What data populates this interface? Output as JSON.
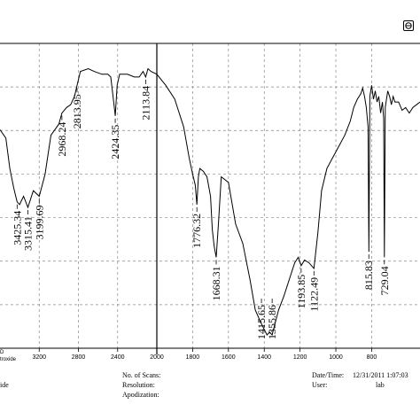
{
  "chart_data": {
    "type": "line",
    "title": "",
    "xlabel": "",
    "ylabel": "",
    "x_reversed": true,
    "xlim": [
      3600,
      530
    ],
    "ylim": [
      0,
      100
    ],
    "x_ticks": [
      3200,
      2800,
      2400,
      2000,
      1800,
      1600,
      1400,
      1200,
      1000,
      800
    ],
    "x_tick_labels": [
      "3200",
      "2800",
      "2400",
      "2000",
      "1800",
      "1600",
      "1400",
      "1200",
      "1000",
      "800"
    ],
    "grid": true,
    "series": [
      {
        "x": [
          3600,
          3540,
          3500,
          3460,
          3425.34,
          3400,
          3360,
          3315.41,
          3260,
          3199.69,
          3140,
          3080,
          3000,
          2968.24,
          2920,
          2880,
          2840,
          2813.95,
          2780,
          2700,
          2640,
          2560,
          2500,
          2470,
          2440,
          2424.35,
          2405,
          2380,
          2300,
          2230,
          2180,
          2140,
          2113.84,
          2090,
          2060,
          2000,
          1950,
          1900,
          1850,
          1820,
          1800,
          1785,
          1776.32,
          1768,
          1760,
          1740,
          1720,
          1700,
          1690,
          1680,
          1668.31,
          1655,
          1640,
          1600,
          1560,
          1520,
          1480,
          1450,
          1430,
          1415.65,
          1400,
          1385,
          1370,
          1355.86,
          1340,
          1320,
          1290,
          1250,
          1230,
          1210,
          1193.85,
          1175,
          1150,
          1122.49,
          1100,
          1080,
          1050,
          1000,
          950,
          920,
          900,
          880,
          860,
          850,
          840,
          830,
          820,
          815.83,
          810,
          800,
          790,
          780,
          770,
          760,
          750,
          740,
          733,
          729.04,
          724,
          710,
          700,
          690,
          680,
          670,
          650,
          630,
          610,
          590,
          570,
          550,
          530
        ],
        "y": [
          74,
          71,
          60,
          53,
          48,
          47,
          50,
          46,
          52,
          50,
          58,
          72,
          76,
          80,
          82,
          83,
          86,
          90,
          95,
          96,
          95,
          94,
          94,
          93,
          84,
          79,
          90,
          94,
          94,
          93,
          93,
          95,
          93,
          96,
          95,
          94,
          90,
          85,
          75,
          64,
          58,
          54,
          47,
          57,
          60,
          59,
          57,
          50,
          38,
          32,
          28,
          41,
          57,
          55,
          40,
          33,
          20,
          9,
          6,
          4,
          2,
          0,
          1,
          0,
          4,
          9,
          14,
          22,
          26,
          28,
          25,
          27,
          26,
          24,
          37,
          52,
          60,
          66,
          72,
          77,
          82,
          85,
          87,
          89,
          86,
          82,
          75,
          30,
          86,
          90,
          85,
          88,
          84,
          86,
          80,
          84,
          78,
          28,
          82,
          88,
          86,
          83,
          86,
          84,
          84,
          81,
          82,
          80,
          82,
          83,
          84
        ]
      }
    ],
    "peaks": [
      {
        "x": 3425.34,
        "label": "3425.34"
      },
      {
        "x": 3315.41,
        "label": "3315.41"
      },
      {
        "x": 3199.69,
        "label": "3199.69"
      },
      {
        "x": 2968.24,
        "label": "2968.24"
      },
      {
        "x": 2813.95,
        "label": "2813.95"
      },
      {
        "x": 2424.35,
        "label": "2424.35"
      },
      {
        "x": 2113.84,
        "label": "2113.84"
      },
      {
        "x": 1776.32,
        "label": "1776.32"
      },
      {
        "x": 1668.31,
        "label": "1668.31"
      },
      {
        "x": 1415.65,
        "label": "1415.65"
      },
      {
        "x": 1355.86,
        "label": "1355.86"
      },
      {
        "x": 1193.85,
        "label": "1193.85"
      },
      {
        "x": 1122.49,
        "label": "1122.49"
      },
      {
        "x": 815.83,
        "label": "815.83"
      },
      {
        "x": 729.04,
        "label": "729.04"
      }
    ]
  },
  "left_edge": {
    "label_top": "D",
    "label_bottom": "troxide"
  },
  "footer": {
    "left_cut_text": "ide",
    "scans_label": "No. of Scans:",
    "resolution_label": "Resolution:",
    "apodization_label": "Apodization:",
    "datetime_label": "Date/Time:",
    "datetime_value": "12/31/2011 1:07:03",
    "user_label": "User:",
    "user_value": "lab"
  }
}
